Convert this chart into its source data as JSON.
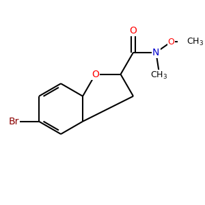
{
  "bg_color": "#ffffff",
  "bond_color": "#000000",
  "bond_width": 1.5,
  "atom_colors": {
    "O": "#ff0000",
    "N": "#0000cd",
    "Br": "#8b0000",
    "C": "#000000"
  },
  "font_size": 9,
  "fig_size": [
    3.0,
    3.0
  ],
  "dpi": 100,
  "xlim": [
    -2.4,
    2.6
  ],
  "ylim": [
    -2.0,
    2.0
  ]
}
